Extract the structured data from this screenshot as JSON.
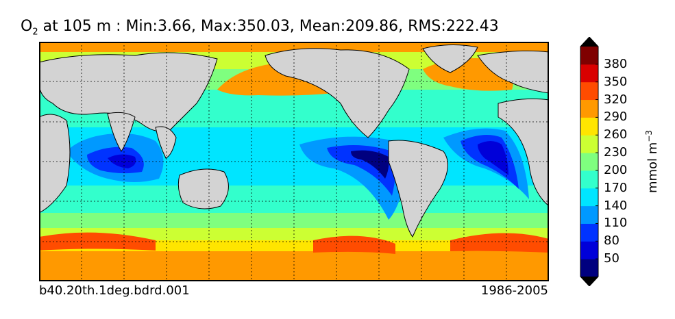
{
  "header": {
    "title_prefix": "O",
    "title_sub": "2",
    "title_main": " at 105 m : Min:3.66, Max:350.03, Mean:209.86, RMS:222.43"
  },
  "footer": {
    "case_name": "b40.20th.1deg.bdrd.001",
    "period": "1986-2005"
  },
  "colorbar": {
    "unit_prefix": "mmol m",
    "unit_exp": "−3",
    "tick_labels": [
      "50",
      "80",
      "110",
      "140",
      "170",
      "200",
      "230",
      "260",
      "290",
      "320",
      "350",
      "380"
    ],
    "colors": [
      "#00007f",
      "#0000d9",
      "#0033ff",
      "#0099ff",
      "#00e5ff",
      "#33ffcc",
      "#7fff7f",
      "#ccff33",
      "#ffe500",
      "#ff9900",
      "#ff4c00",
      "#d90000",
      "#7f0000"
    ],
    "under_color": "#000000",
    "over_color": "#000000"
  },
  "map": {
    "land_color": "#d3d3d3",
    "missing_color": "#ffffff",
    "grid": "dotted"
  }
}
